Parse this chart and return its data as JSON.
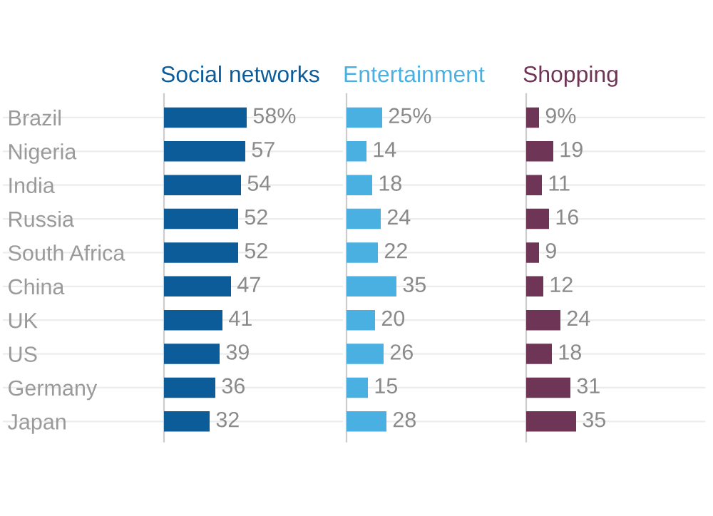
{
  "chart_data": [
    {
      "type": "bar",
      "orientation": "horizontal",
      "title": "Social networks",
      "categories": [
        "Brazil",
        "Nigeria",
        "India",
        "Russia",
        "South Africa",
        "China",
        "UK",
        "US",
        "Germany",
        "Japan"
      ],
      "tick_labels": "y",
      "grid": "y",
      "xlim": [
        0,
        125
      ],
      "series": [
        {
          "color": "#0b5c99",
          "values": [
            58,
            57,
            54,
            52,
            52,
            47,
            41,
            39,
            36,
            32
          ],
          "value_labels": [
            "58%",
            "57",
            "54",
            "52",
            "52",
            "47",
            "41",
            "39",
            "36",
            "32"
          ]
        }
      ]
    },
    {
      "type": "bar",
      "orientation": "horizontal",
      "title": "Entertainment",
      "categories": [
        null,
        null,
        null,
        null,
        null,
        null,
        null,
        null,
        null,
        null
      ],
      "tick_labels": false,
      "grid": "y",
      "xlim": [
        0,
        125
      ],
      "series": [
        {
          "color": "#4ab0e2",
          "values": [
            25,
            14,
            18,
            24,
            22,
            35,
            20,
            26,
            15,
            28
          ],
          "value_labels": [
            "25%",
            "14",
            "18",
            "24",
            "22",
            "35",
            "20",
            "26",
            "15",
            "28"
          ]
        }
      ]
    },
    {
      "type": "bar",
      "orientation": "horizontal",
      "title": "Shopping",
      "categories": [
        null,
        null,
        null,
        null,
        null,
        null,
        null,
        null,
        null,
        null
      ],
      "tick_labels": false,
      "grid": "y",
      "xlim": [
        0,
        125
      ],
      "series": [
        {
          "color": "#6e3556",
          "values": [
            9,
            19,
            11,
            16,
            9,
            12,
            24,
            18,
            31,
            35
          ],
          "value_labels": [
            "9%",
            "19",
            "11",
            "16",
            "9",
            "12",
            "24",
            "18",
            "31",
            "35"
          ]
        }
      ]
    }
  ]
}
